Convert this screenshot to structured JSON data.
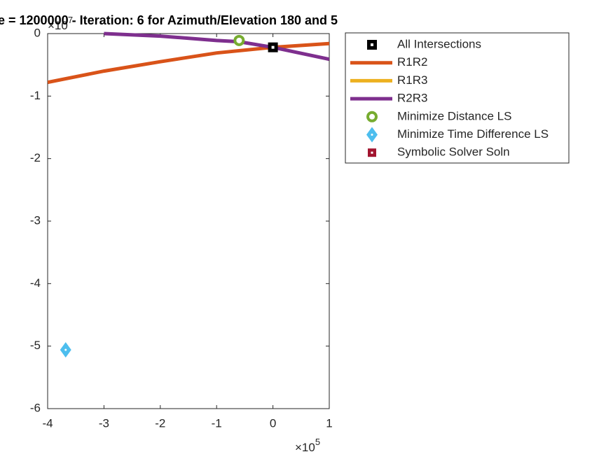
{
  "chart_data": {
    "type": "line",
    "title": "e = 1200000 - Iteration: 6 for Azimuth/Elevation 180 and 5",
    "x_exponent_base": "×10",
    "x_exponent": "5",
    "y_exponent_base": "×10",
    "y_exponent": "7",
    "xlim": [
      -4,
      1
    ],
    "xticks": [
      -4,
      -3,
      -2,
      -1,
      0,
      1
    ],
    "ylim": [
      -6,
      0
    ],
    "yticks": [
      0,
      -1,
      -2,
      -3,
      -4,
      -5,
      -6
    ],
    "grid": false,
    "legend": "outside-right",
    "series": [
      {
        "name": "All Intersections",
        "color": "#000000",
        "marker": "square",
        "x": [
          0
        ],
        "values": [
          -0.22
        ]
      },
      {
        "name": "R1R2",
        "color": "#d95319",
        "marker": "none",
        "x": [
          -4,
          -3,
          -2,
          -1,
          0,
          1
        ],
        "values": [
          -0.78,
          -0.6,
          -0.45,
          -0.31,
          -0.22,
          -0.16
        ]
      },
      {
        "name": "R1R3",
        "color": "#edb120",
        "marker": "none",
        "x": [],
        "values": []
      },
      {
        "name": "R2R3",
        "color": "#7e2f8e",
        "marker": "none",
        "x": [
          -3,
          -2,
          -1,
          -0.6,
          0,
          1
        ],
        "values": [
          0,
          -0.04,
          -0.11,
          -0.13,
          -0.22,
          -0.41
        ]
      },
      {
        "name": "Minimize Distance LS",
        "color": "#77ac30",
        "marker": "circle",
        "x": [
          -0.6
        ],
        "values": [
          -0.11
        ]
      },
      {
        "name": "Minimize Time Difference LS",
        "color": "#4dbeee",
        "marker": "diamond",
        "x": [
          -3.68
        ],
        "values": [
          -5.06
        ]
      },
      {
        "name": "Symbolic Solver Soln",
        "color": "#a2142f",
        "marker": "square-small",
        "x": [
          0
        ],
        "values": [
          -0.22
        ]
      }
    ]
  }
}
